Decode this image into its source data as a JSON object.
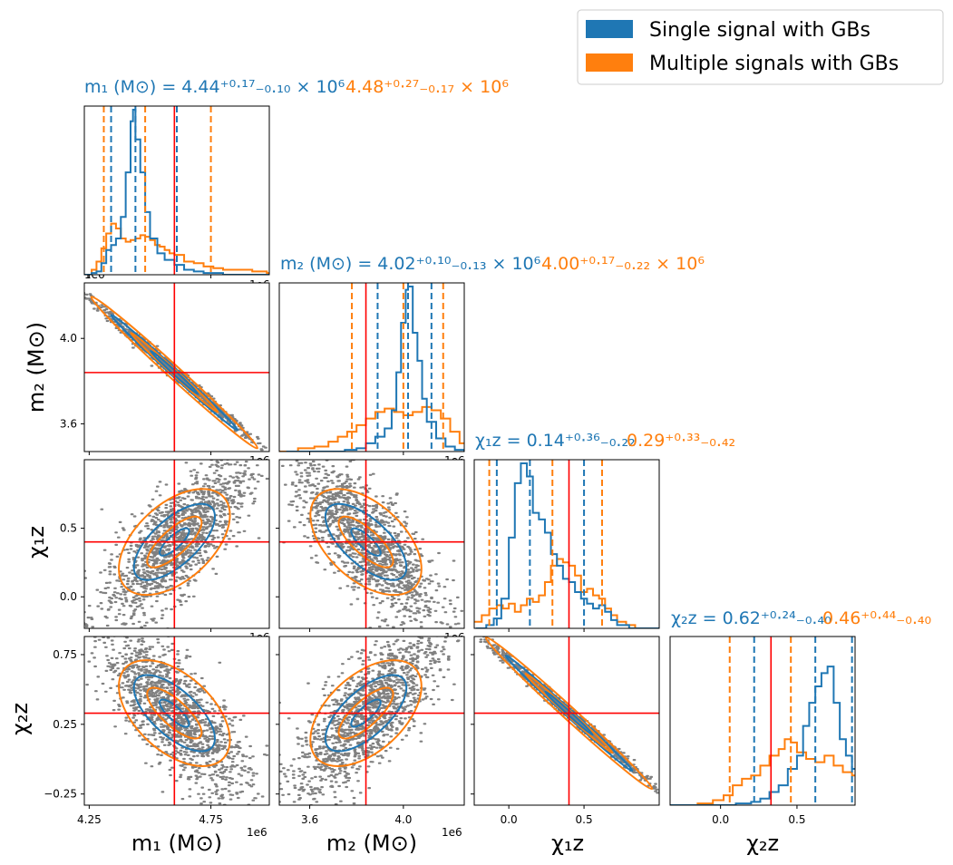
{
  "colors": {
    "single": "#1f77b4",
    "multiple": "#ff7f0e",
    "truth": "#ff0000",
    "samples": "#808080"
  },
  "legend": {
    "items": [
      {
        "label": "Single signal with GBs",
        "color": "#1f77b4"
      },
      {
        "label": "Multiple signals with GBs",
        "color": "#ff7f0e"
      }
    ]
  },
  "titles": {
    "m1": {
      "single": "m₁ (M⊙) = 4.44⁺⁰·¹⁷₋₀.₁₀ × 10⁶",
      "multiple": "4.48⁺⁰·²⁷₋₀.₁₇ × 10⁶"
    },
    "m2": {
      "single": "m₂ (M⊙) = 4.02⁺⁰·¹⁰₋₀.₁₃ × 10⁶",
      "multiple": "4.00⁺⁰·¹⁷₋₀.₂₂ × 10⁶"
    },
    "chi1z": {
      "single": "χ₁z = 0.14⁺⁰·³⁶₋₀.₂₂",
      "multiple": "0.29⁺⁰·³³₋₀.₄₂"
    },
    "chi2z": {
      "single": "χ₂z = 0.62⁺⁰·²⁴₋₀.₄₀",
      "multiple": "0.46⁺⁰·⁴⁴₋₀.₄₀"
    }
  },
  "axis_labels": {
    "m1": "m₁ (M⊙)",
    "m2": "m₂ (M⊙)",
    "chi1z": "χ₁z",
    "chi2z": "χ₂z",
    "sci_offset": "1e6"
  },
  "chart_data": {
    "type": "corner",
    "parameters": [
      "m1",
      "m2",
      "chi1z",
      "chi2z"
    ],
    "ranges": {
      "m1": [
        4.23,
        4.99
      ],
      "m2": [
        3.47,
        4.26
      ],
      "chi1z": [
        -0.23,
        1.0
      ],
      "chi2z": [
        -0.33,
        0.88
      ]
    },
    "ticks": {
      "m1": [
        4.25,
        4.75
      ],
      "m2": [
        3.6,
        4.0
      ],
      "chi1z": [
        0.0,
        0.5
      ],
      "chi2z_x": [
        0.0,
        0.5
      ],
      "chi2z_y": [
        -0.25,
        0.25,
        0.75
      ]
    },
    "tick_labels": {
      "m1": [
        "4.25",
        "4.75"
      ],
      "m2": [
        "3.6",
        "4.0"
      ],
      "chi1z": [
        "0.0",
        "0.5"
      ],
      "chi2z_x": [
        "0.0",
        "0.5"
      ],
      "chi2z_y": [
        "−0.25",
        "0.25",
        "0.75"
      ]
    },
    "truths": {
      "m1": 4.6,
      "m2": 3.84,
      "chi1z": 0.4,
      "chi2z": 0.33
    },
    "quantiles": {
      "m1": {
        "single": [
          4.34,
          4.44,
          4.61
        ],
        "multiple": [
          4.31,
          4.48,
          4.75
        ]
      },
      "m2": {
        "single": [
          3.89,
          4.02,
          4.12
        ],
        "multiple": [
          3.78,
          4.0,
          4.17
        ]
      },
      "chi1z": {
        "single": [
          -0.08,
          0.14,
          0.5
        ],
        "multiple": [
          -0.13,
          0.29,
          0.62
        ]
      },
      "chi2z": {
        "single": [
          0.22,
          0.62,
          0.86
        ],
        "multiple": [
          0.06,
          0.46,
          0.9
        ]
      }
    },
    "hist": {
      "m1": {
        "single": [
          [
            4.23,
            0
          ],
          [
            4.26,
            0.01
          ],
          [
            4.28,
            0.02
          ],
          [
            4.3,
            0.07
          ],
          [
            4.32,
            0.15
          ],
          [
            4.34,
            0.18
          ],
          [
            4.36,
            0.22
          ],
          [
            4.38,
            0.35
          ],
          [
            4.4,
            0.62
          ],
          [
            4.42,
            0.93
          ],
          [
            4.43,
            1.0
          ],
          [
            4.44,
            0.82
          ],
          [
            4.46,
            0.62
          ],
          [
            4.48,
            0.38
          ],
          [
            4.5,
            0.22
          ],
          [
            4.53,
            0.13
          ],
          [
            4.56,
            0.09
          ],
          [
            4.6,
            0.06
          ],
          [
            4.64,
            0.03
          ],
          [
            4.68,
            0.02
          ],
          [
            4.72,
            0.01
          ],
          [
            4.8,
            0
          ]
        ],
        "multiple": [
          [
            4.23,
            0
          ],
          [
            4.26,
            0.03
          ],
          [
            4.28,
            0.08
          ],
          [
            4.3,
            0.16
          ],
          [
            4.32,
            0.25
          ],
          [
            4.34,
            0.31
          ],
          [
            4.36,
            0.28
          ],
          [
            4.38,
            0.22
          ],
          [
            4.4,
            0.2
          ],
          [
            4.42,
            0.21
          ],
          [
            4.44,
            0.22
          ],
          [
            4.46,
            0.24
          ],
          [
            4.48,
            0.23
          ],
          [
            4.5,
            0.21
          ],
          [
            4.52,
            0.18
          ],
          [
            4.54,
            0.17
          ],
          [
            4.56,
            0.15
          ],
          [
            4.58,
            0.13
          ],
          [
            4.6,
            0.12
          ],
          [
            4.64,
            0.08
          ],
          [
            4.68,
            0.07
          ],
          [
            4.72,
            0.05
          ],
          [
            4.76,
            0.04
          ],
          [
            4.8,
            0.03
          ],
          [
            4.86,
            0.03
          ],
          [
            4.92,
            0.02
          ],
          [
            4.98,
            0.01
          ]
        ]
      },
      "m2": {
        "single": [
          [
            3.5,
            0
          ],
          [
            3.75,
            0.01
          ],
          [
            3.8,
            0.02
          ],
          [
            3.84,
            0.05
          ],
          [
            3.88,
            0.09
          ],
          [
            3.92,
            0.14
          ],
          [
            3.95,
            0.25
          ],
          [
            3.97,
            0.48
          ],
          [
            3.99,
            0.78
          ],
          [
            4.01,
            0.98
          ],
          [
            4.02,
            1.0
          ],
          [
            4.04,
            0.72
          ],
          [
            4.06,
            0.55
          ],
          [
            4.08,
            0.32
          ],
          [
            4.1,
            0.18
          ],
          [
            4.14,
            0.08
          ],
          [
            4.18,
            0.03
          ],
          [
            4.22,
            0.01
          ],
          [
            4.26,
            0
          ]
        ],
        "multiple": [
          [
            3.47,
            0
          ],
          [
            3.55,
            0.02
          ],
          [
            3.62,
            0.03
          ],
          [
            3.68,
            0.06
          ],
          [
            3.72,
            0.09
          ],
          [
            3.76,
            0.12
          ],
          [
            3.8,
            0.16
          ],
          [
            3.84,
            0.2
          ],
          [
            3.88,
            0.24
          ],
          [
            3.92,
            0.26
          ],
          [
            3.96,
            0.24
          ],
          [
            4.0,
            0.22
          ],
          [
            4.04,
            0.24
          ],
          [
            4.08,
            0.27
          ],
          [
            4.12,
            0.25
          ],
          [
            4.16,
            0.2
          ],
          [
            4.2,
            0.12
          ],
          [
            4.24,
            0.05
          ]
        ]
      },
      "chi1z": {
        "single": [
          [
            -0.22,
            0
          ],
          [
            -0.15,
            0.02
          ],
          [
            -0.1,
            0.06
          ],
          [
            -0.05,
            0.18
          ],
          [
            0.0,
            0.55
          ],
          [
            0.04,
            0.88
          ],
          [
            0.08,
            1.0
          ],
          [
            0.12,
            0.92
          ],
          [
            0.16,
            0.7
          ],
          [
            0.2,
            0.66
          ],
          [
            0.24,
            0.58
          ],
          [
            0.28,
            0.45
          ],
          [
            0.32,
            0.38
          ],
          [
            0.36,
            0.3
          ],
          [
            0.4,
            0.28
          ],
          [
            0.44,
            0.22
          ],
          [
            0.48,
            0.18
          ],
          [
            0.52,
            0.15
          ],
          [
            0.56,
            0.12
          ],
          [
            0.6,
            0.14
          ],
          [
            0.64,
            0.1
          ],
          [
            0.68,
            0.05
          ],
          [
            0.72,
            0.02
          ],
          [
            0.8,
            0
          ]
        ],
        "multiple": [
          [
            -0.23,
            0.04
          ],
          [
            -0.18,
            0.08
          ],
          [
            -0.13,
            0.12
          ],
          [
            -0.08,
            0.14
          ],
          [
            -0.04,
            0.12
          ],
          [
            0.0,
            0.15
          ],
          [
            0.04,
            0.1
          ],
          [
            0.08,
            0.14
          ],
          [
            0.12,
            0.18
          ],
          [
            0.16,
            0.16
          ],
          [
            0.2,
            0.2
          ],
          [
            0.24,
            0.28
          ],
          [
            0.28,
            0.38
          ],
          [
            0.32,
            0.42
          ],
          [
            0.36,
            0.4
          ],
          [
            0.4,
            0.38
          ],
          [
            0.44,
            0.32
          ],
          [
            0.48,
            0.22
          ],
          [
            0.52,
            0.24
          ],
          [
            0.56,
            0.2
          ],
          [
            0.6,
            0.18
          ],
          [
            0.64,
            0.12
          ],
          [
            0.68,
            0.08
          ],
          [
            0.72,
            0.04
          ],
          [
            0.78,
            0.02
          ],
          [
            0.84,
            0
          ]
        ]
      },
      "chi2z": {
        "single": [
          [
            -0.33,
            0
          ],
          [
            0.1,
            0.01
          ],
          [
            0.2,
            0.02
          ],
          [
            0.26,
            0.04
          ],
          [
            0.32,
            0.08
          ],
          [
            0.38,
            0.12
          ],
          [
            0.44,
            0.22
          ],
          [
            0.5,
            0.3
          ],
          [
            0.54,
            0.48
          ],
          [
            0.58,
            0.62
          ],
          [
            0.62,
            0.72
          ],
          [
            0.66,
            0.8
          ],
          [
            0.7,
            0.84
          ],
          [
            0.74,
            0.62
          ],
          [
            0.78,
            0.4
          ],
          [
            0.82,
            0.3
          ],
          [
            0.86,
            0.22
          ],
          [
            0.9,
            0.18
          ],
          [
            0.94,
            0.1
          ]
        ],
        "multiple": [
          [
            -0.33,
            0
          ],
          [
            -0.15,
            0.01
          ],
          [
            -0.05,
            0.03
          ],
          [
            0.02,
            0.06
          ],
          [
            0.08,
            0.12
          ],
          [
            0.14,
            0.16
          ],
          [
            0.2,
            0.18
          ],
          [
            0.26,
            0.24
          ],
          [
            0.32,
            0.3
          ],
          [
            0.38,
            0.34
          ],
          [
            0.42,
            0.4
          ],
          [
            0.46,
            0.38
          ],
          [
            0.5,
            0.32
          ],
          [
            0.56,
            0.28
          ],
          [
            0.62,
            0.26
          ],
          [
            0.68,
            0.3
          ],
          [
            0.74,
            0.24
          ],
          [
            0.8,
            0.2
          ],
          [
            0.86,
            0.18
          ],
          [
            0.92,
            0.14
          ]
        ]
      }
    },
    "scatter_2d": [
      {
        "x": "m1",
        "y": "m2",
        "trend": "negative-tight"
      },
      {
        "x": "m1",
        "y": "chi1z",
        "trend": "positive-broad"
      },
      {
        "x": "m2",
        "y": "chi1z",
        "trend": "negative-broad"
      },
      {
        "x": "m1",
        "y": "chi2z",
        "trend": "negative-broad"
      },
      {
        "x": "m2",
        "y": "chi2z",
        "trend": "positive-broad"
      },
      {
        "x": "chi1z",
        "y": "chi2z",
        "trend": "negative-tight"
      }
    ]
  }
}
